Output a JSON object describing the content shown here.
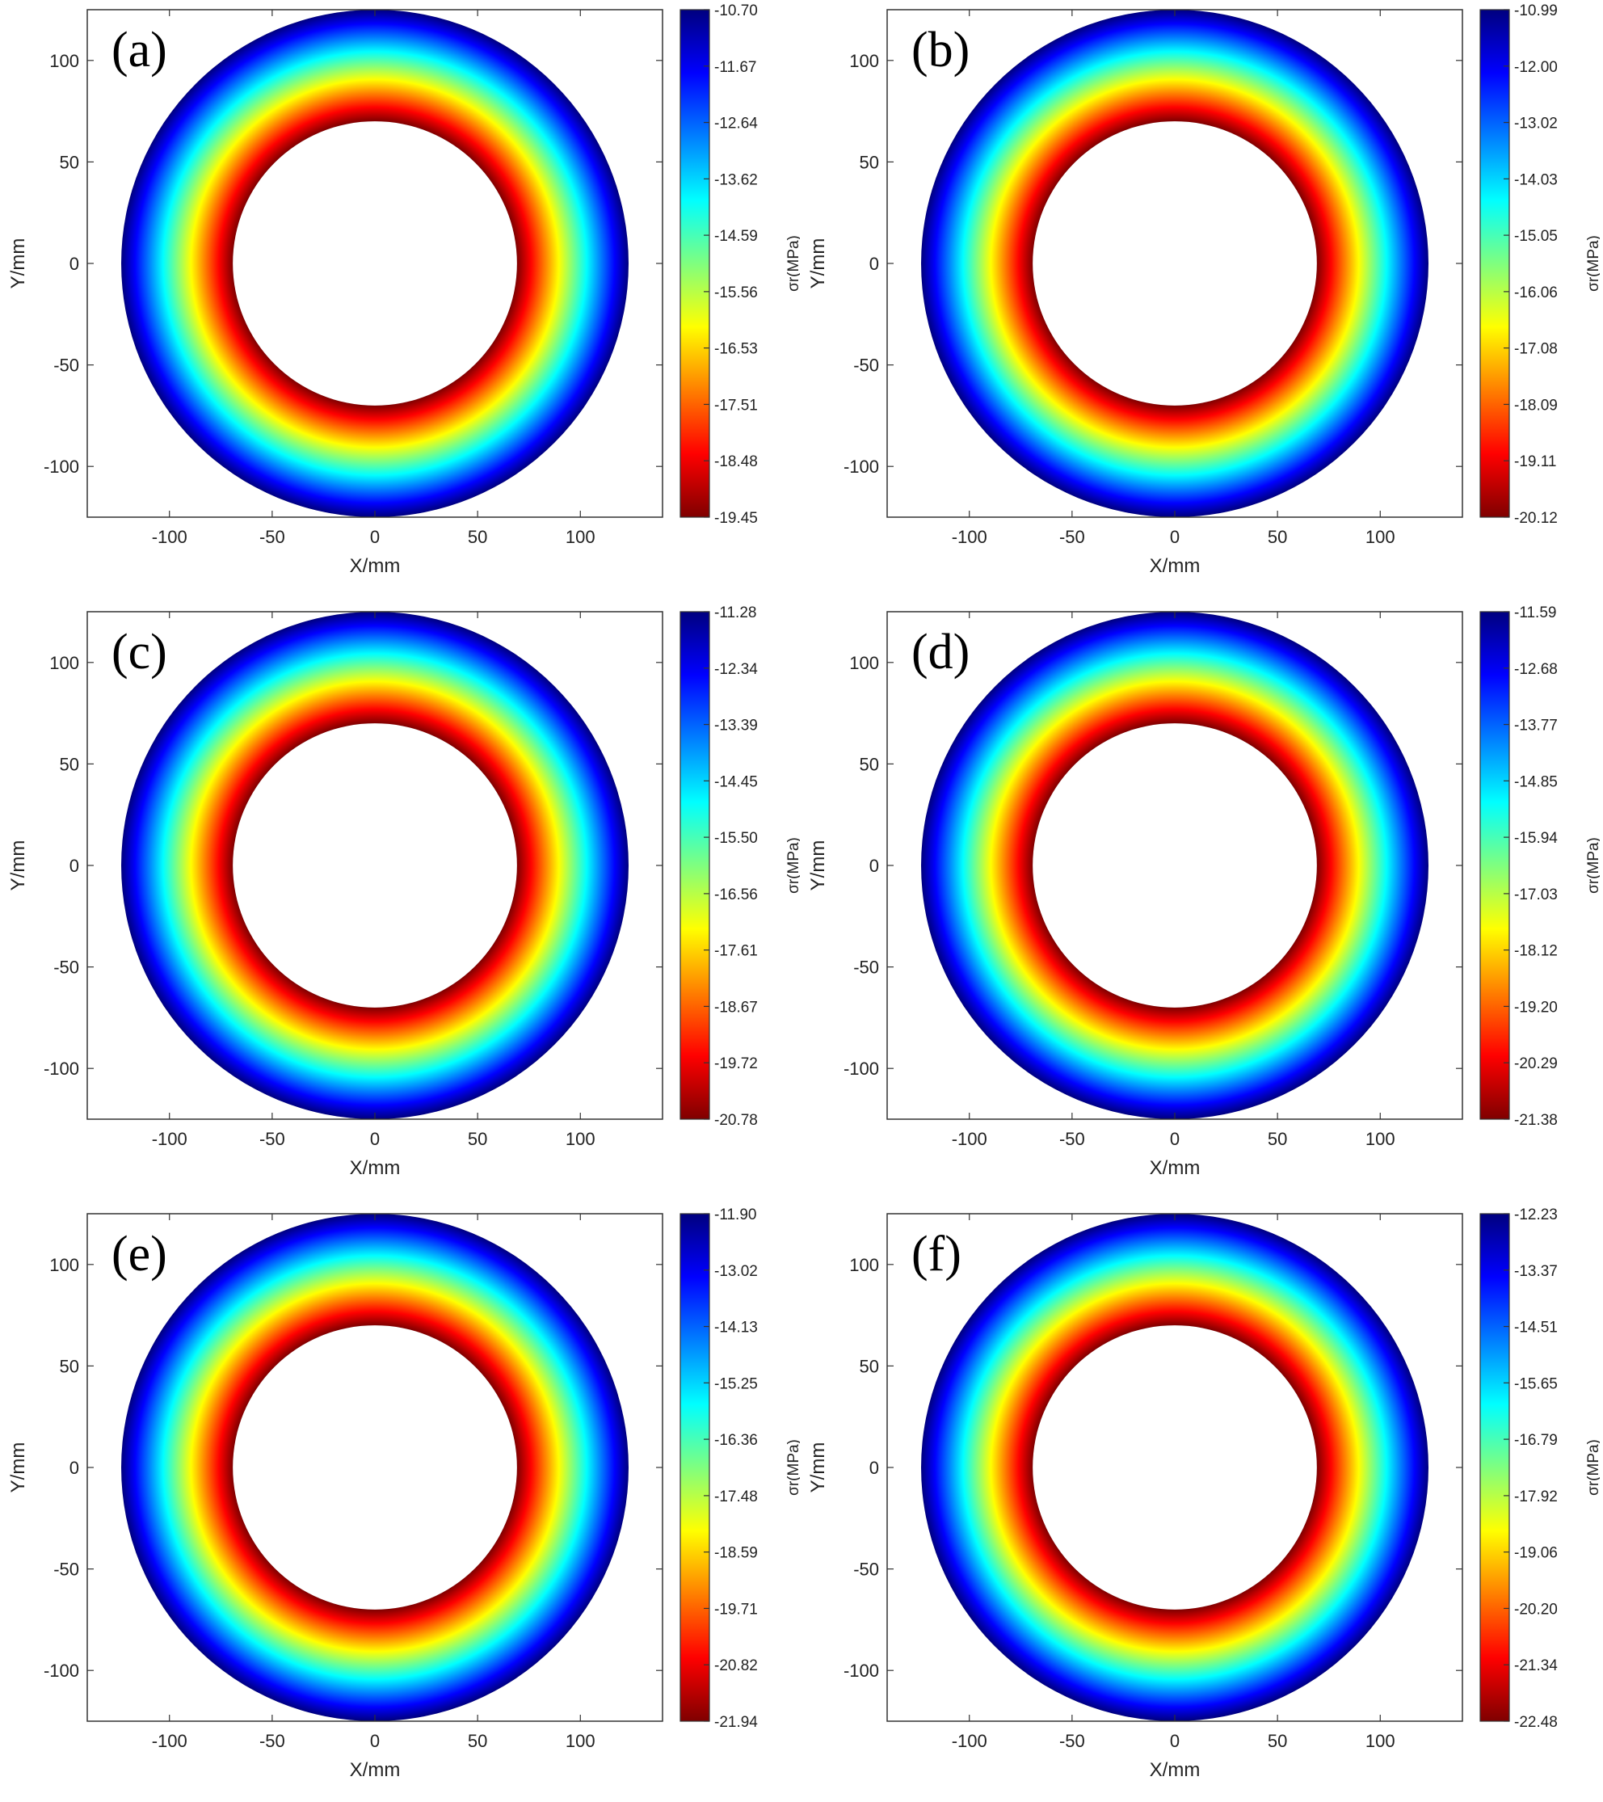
{
  "chart_data": [
    {
      "type": "heatmap",
      "panel_label": "(a)",
      "xlabel": "X/mm",
      "ylabel": "Y/mm",
      "colorbar_label": "σr(MPa)",
      "inner_radius": 70,
      "outer_radius": 125,
      "x_ticks": [
        "-100",
        "-50",
        "0",
        "50",
        "100"
      ],
      "y_ticks": [
        "100",
        "50",
        "0",
        "-50",
        "-100"
      ],
      "colorbar_ticks": [
        "-10.70",
        "-11.67",
        "-12.64",
        "-13.62",
        "-14.59",
        "-15.56",
        "-16.53",
        "-17.51",
        "-18.48",
        "-19.45"
      ]
    },
    {
      "type": "heatmap",
      "panel_label": "(b)",
      "xlabel": "X/mm",
      "ylabel": "Y/mm",
      "colorbar_label": "σr(MPa)",
      "inner_radius": 70,
      "outer_radius": 125,
      "x_ticks": [
        "-100",
        "-50",
        "0",
        "50",
        "100"
      ],
      "y_ticks": [
        "100",
        "50",
        "0",
        "-50",
        "-100"
      ],
      "colorbar_ticks": [
        "-10.99",
        "-12.00",
        "-13.02",
        "-14.03",
        "-15.05",
        "-16.06",
        "-17.08",
        "-18.09",
        "-19.11",
        "-20.12"
      ]
    },
    {
      "type": "heatmap",
      "panel_label": "(c)",
      "xlabel": "X/mm",
      "ylabel": "Y/mm",
      "colorbar_label": "σr(MPa)",
      "inner_radius": 70,
      "outer_radius": 125,
      "x_ticks": [
        "-100",
        "-50",
        "0",
        "50",
        "100"
      ],
      "y_ticks": [
        "100",
        "50",
        "0",
        "-50",
        "-100"
      ],
      "colorbar_ticks": [
        "-11.28",
        "-12.34",
        "-13.39",
        "-14.45",
        "-15.50",
        "-16.56",
        "-17.61",
        "-18.67",
        "-19.72",
        "-20.78"
      ]
    },
    {
      "type": "heatmap",
      "panel_label": "(d)",
      "xlabel": "X/mm",
      "ylabel": "Y/mm",
      "colorbar_label": "σr(MPa)",
      "inner_radius": 70,
      "outer_radius": 125,
      "x_ticks": [
        "-100",
        "-50",
        "0",
        "50",
        "100"
      ],
      "y_ticks": [
        "100",
        "50",
        "0",
        "-50",
        "-100"
      ],
      "colorbar_ticks": [
        "-11.59",
        "-12.68",
        "-13.77",
        "-14.85",
        "-15.94",
        "-17.03",
        "-18.12",
        "-19.20",
        "-20.29",
        "-21.38"
      ]
    },
    {
      "type": "heatmap",
      "panel_label": "(e)",
      "xlabel": "X/mm",
      "ylabel": "Y/mm",
      "colorbar_label": "σr(MPa)",
      "inner_radius": 70,
      "outer_radius": 125,
      "x_ticks": [
        "-100",
        "-50",
        "0",
        "50",
        "100"
      ],
      "y_ticks": [
        "100",
        "50",
        "0",
        "-50",
        "-100"
      ],
      "colorbar_ticks": [
        "-11.90",
        "-13.02",
        "-14.13",
        "-15.25",
        "-16.36",
        "-17.48",
        "-18.59",
        "-19.71",
        "-20.82",
        "-21.94"
      ]
    },
    {
      "type": "heatmap",
      "panel_label": "(f)",
      "xlabel": "X/mm",
      "ylabel": "Y/mm",
      "colorbar_label": "σr(MPa)",
      "inner_radius": 70,
      "outer_radius": 125,
      "x_ticks": [
        "-100",
        "-50",
        "0",
        "50",
        "100"
      ],
      "y_ticks": [
        "100",
        "50",
        "0",
        "-50",
        "-100"
      ],
      "colorbar_ticks": [
        "-12.23",
        "-13.37",
        "-14.51",
        "-15.65",
        "-16.79",
        "-17.92",
        "-19.06",
        "-20.20",
        "-21.34",
        "-22.48"
      ]
    }
  ],
  "colormap": {
    "name": "jet",
    "stops": [
      "#7f0000",
      "#ff0000",
      "#ff7f00",
      "#ffff00",
      "#7fff7f",
      "#00ffff",
      "#007fff",
      "#0000ff",
      "#00007f"
    ]
  }
}
